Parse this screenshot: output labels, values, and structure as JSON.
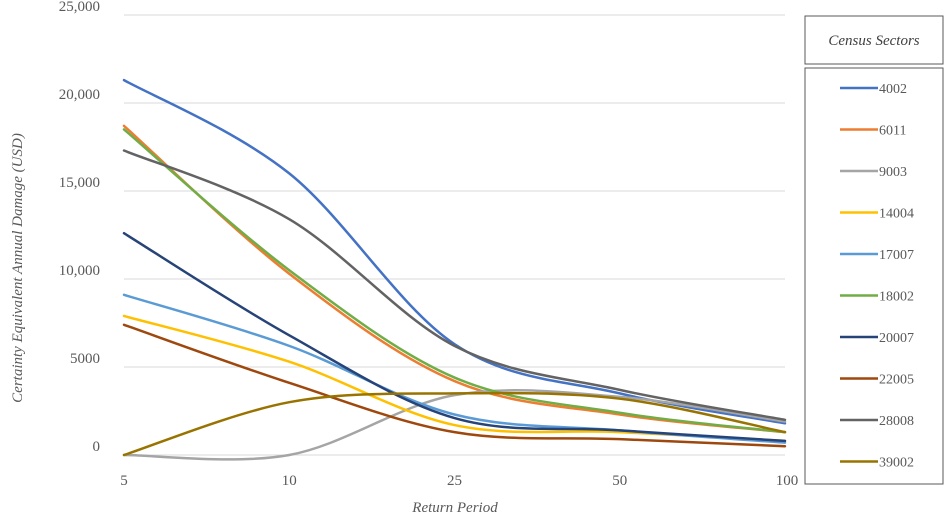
{
  "chart_data": {
    "type": "line",
    "title": "",
    "xlabel": "Return Period",
    "ylabel": "Certainty Equivalent Annual Damage (USD)",
    "categories": [
      "5",
      "10",
      "25",
      "50",
      "100"
    ],
    "y_ticks": [
      "0",
      "5000",
      "10,000",
      "15,000",
      "20,000",
      "25,000"
    ],
    "ylim": [
      0,
      25000
    ],
    "grid": "horizontal",
    "legend_title": "Census Sectors",
    "legend_position": "right",
    "smooth": true,
    "series": [
      {
        "name": "4002",
        "color": "#4472C4",
        "values": [
          21300,
          16000,
          6300,
          3500,
          1800
        ]
      },
      {
        "name": "6011",
        "color": "#ED7D31",
        "values": [
          18700,
          10300,
          4200,
          2300,
          1300
        ]
      },
      {
        "name": "9003",
        "color": "#A5A5A5",
        "values": [
          0,
          0,
          3400,
          3300,
          1900
        ]
      },
      {
        "name": "14004",
        "color": "#FFC000",
        "values": [
          7900,
          5300,
          1700,
          1300,
          800
        ]
      },
      {
        "name": "17007",
        "color": "#5B9BD5",
        "values": [
          9100,
          6200,
          2300,
          1400,
          700
        ]
      },
      {
        "name": "18002",
        "color": "#70AD47",
        "values": [
          18500,
          10500,
          4400,
          2400,
          1300
        ]
      },
      {
        "name": "20007",
        "color": "#264478",
        "values": [
          12600,
          6800,
          2100,
          1400,
          800
        ]
      },
      {
        "name": "22005",
        "color": "#9E480E",
        "values": [
          7400,
          4100,
          1300,
          900,
          500
        ]
      },
      {
        "name": "28008",
        "color": "#636363",
        "values": [
          17300,
          13400,
          6200,
          3700,
          2000
        ]
      },
      {
        "name": "39002",
        "color": "#997300",
        "values": [
          0,
          3000,
          3500,
          3200,
          1300
        ]
      }
    ]
  }
}
